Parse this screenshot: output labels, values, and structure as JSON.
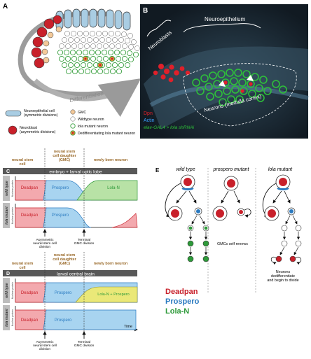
{
  "colors": {
    "deadpan": "#c8202a",
    "prospero": "#2a7ac0",
    "lola_n": "#2e9a3a",
    "neuroepithelial": "#a9cde3",
    "gmc": "#f3c99a",
    "brown": "#9a6a2a",
    "header_dark": "#585858",
    "micro_bg": "#1a2530",
    "dpn_red": "#e0202a",
    "actin_blue": "#3aa0ff",
    "lola_green": "#2ec03a"
  },
  "panel_a": {
    "label": "A",
    "differentiation": "Differentiation",
    "legend": [
      {
        "key": "neuroepithelial",
        "label": "Neuroepithelial cell (symmetric divisions)"
      },
      {
        "key": "neuroblast",
        "label": "Neuroblast (asymmetric divisions)"
      },
      {
        "key": "gmc",
        "label": "GMC"
      },
      {
        "key": "wt_neuron",
        "label": "Wildtype neuron"
      },
      {
        "key": "lola_neuron",
        "label": "lola mutant neuron"
      },
      {
        "key": "dediff",
        "label": "Dedifferentiating lola mutant neuron"
      }
    ]
  },
  "panel_b": {
    "label": "B",
    "neuroepithelium": "Neuroepithelium",
    "neuroblasts": "Neuroblasts",
    "neurons": "Neurons (medulla cortex)",
    "legend_dpn": "Dpn",
    "legend_actin": "Actin",
    "legend_elav": "elav-GAL4 > lola shRNAi"
  },
  "panel_c": {
    "label": "C",
    "col_stem": "neural stem cell",
    "col_gmc": "neural stem cell daughter (GMC)",
    "col_neuron": "newly born neuron",
    "header": "embryo + larval optic lobe",
    "wt_side": "wild type",
    "mut_side": "lola mutant",
    "y_label": "Nuclear protein",
    "deadpan": "Deadpan",
    "prospero": "Prospero",
    "lola_n": "Lola-N",
    "event1": "Asymmetric neural stem cell division",
    "event2": "Terminal GMC division"
  },
  "panel_d": {
    "label": "D",
    "col_stem": "neural stem cell",
    "col_gmc": "neural stem cell daughter (GMC)",
    "col_neuron": "newly born neuron",
    "header": "larval central brain",
    "wt_side": "wild type",
    "mut_side": "lola mutant",
    "y_label": "Nuclear protein",
    "deadpan": "Deadpan",
    "prospero": "Prospero",
    "lola_prospero": "Lola-N + Prospero",
    "time": "Time",
    "event1": "Asymmetric neural stem cell division",
    "event2": "Terminal GMC division"
  },
  "panel_e": {
    "label": "E",
    "wild_type": "wild type",
    "prospero_mutant": "prospero mutant",
    "lola_mutant": "lola mutant",
    "note_prospero": "GMCs self renews",
    "note_lola": "Neurons dedifferentiate and begin to divide",
    "legend_deadpan": "Deadpan",
    "legend_prospero": "Prospero",
    "legend_lola": "Lola-N"
  }
}
